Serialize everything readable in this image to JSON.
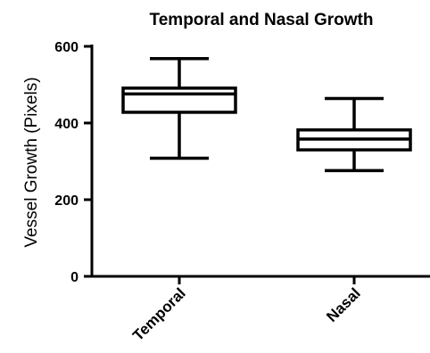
{
  "chart_data": {
    "type": "boxplot",
    "title": "Temporal and Nasal Growth",
    "xlabel": "",
    "ylabel": "Vessel Growth (Pixels)",
    "ylim": [
      0,
      600
    ],
    "yticks": [
      0,
      200,
      400,
      600
    ],
    "grid": false,
    "categories": [
      "Temporal",
      "Nasal"
    ],
    "boxes": [
      {
        "category": "Temporal",
        "min": 308,
        "q1": 428,
        "median": 476,
        "q3": 491,
        "max": 568
      },
      {
        "category": "Nasal",
        "min": 276,
        "q1": 330,
        "median": 358,
        "q3": 382,
        "max": 464
      }
    ]
  }
}
